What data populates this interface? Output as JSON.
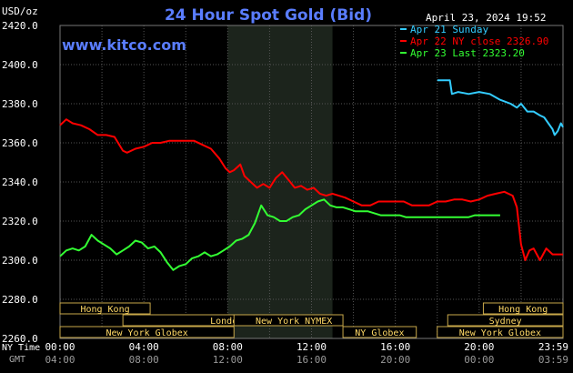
{
  "chart_data": {
    "type": "line",
    "title": "24 Hour Spot Gold (Bid)",
    "ylabel": "USD/oz",
    "watermark": "www.kitco.com",
    "timestamp": "April 23, 2024 19:52",
    "ylim": [
      2260,
      2420
    ],
    "yticks": [
      2260,
      2280,
      2300,
      2320,
      2340,
      2360,
      2380,
      2400,
      2420
    ],
    "ytick_labels": [
      "2260.0",
      "2280.0",
      "2300.0",
      "2320.0",
      "2340.0",
      "2360.0",
      "2380.0",
      "2400.0",
      "2420.0"
    ],
    "xlim": [
      0,
      24
    ],
    "xticks": [
      0,
      4,
      8,
      12,
      16,
      20,
      24
    ],
    "x_row1_label": "NY Time",
    "x_row1_ticks": [
      "00:00",
      "04:00",
      "08:00",
      "12:00",
      "16:00",
      "20:00",
      "23:59"
    ],
    "x_row2_label": "GMT",
    "x_row2_ticks": [
      "04:00",
      "08:00",
      "12:00",
      "16:00",
      "20:00",
      "00:00",
      "03:59"
    ],
    "shaded_region": [
      8,
      13
    ],
    "grid": true,
    "legend_position": "top-right",
    "series": [
      {
        "name": "Apr 21 Sunday",
        "color": "#33ccff",
        "x": [
          18,
          18.6,
          18.7,
          19.0,
          19.5,
          20.0,
          20.5,
          21.0,
          21.5,
          21.8,
          22.0,
          22.3,
          22.6,
          22.9,
          23.1,
          23.3,
          23.5,
          23.6,
          23.75,
          23.9,
          24.0
        ],
        "y": [
          2392,
          2392,
          2385,
          2386,
          2385,
          2386,
          2385,
          2382,
          2380,
          2378,
          2380,
          2376,
          2376,
          2374,
          2373,
          2370,
          2367,
          2364,
          2366,
          2370,
          2368
        ]
      },
      {
        "name": "Apr 22 NY close 2326.90",
        "color": "#ff0000",
        "x": [
          0,
          0.3,
          0.6,
          1.0,
          1.4,
          1.8,
          2.2,
          2.6,
          3.0,
          3.2,
          3.6,
          4.0,
          4.4,
          4.8,
          5.2,
          5.6,
          6.0,
          6.4,
          6.8,
          7.2,
          7.6,
          7.9,
          8.1,
          8.3,
          8.6,
          8.8,
          9.1,
          9.4,
          9.7,
          10.0,
          10.3,
          10.6,
          10.9,
          11.2,
          11.5,
          11.8,
          12.1,
          12.4,
          12.7,
          13.0,
          13.3,
          13.6,
          14.0,
          14.4,
          14.8,
          15.2,
          15.6,
          16.0,
          16.4,
          16.8,
          17.2,
          17.6,
          18.0,
          18.4,
          18.8,
          19.2,
          19.6,
          20.0,
          20.4,
          20.8,
          21.2,
          21.6,
          21.8,
          22.0,
          22.2,
          22.4,
          22.6,
          22.9,
          23.2,
          23.5,
          23.8,
          24.0
        ],
        "y": [
          2369,
          2372,
          2370,
          2369,
          2367,
          2364,
          2364,
          2363,
          2356,
          2355,
          2357,
          2358,
          2360,
          2360,
          2361,
          2361,
          2361,
          2361,
          2359,
          2357,
          2352,
          2347,
          2345,
          2346,
          2349,
          2343,
          2340,
          2337,
          2339,
          2337,
          2342,
          2345,
          2341,
          2337,
          2338,
          2336,
          2337,
          2334,
          2333,
          2334,
          2333,
          2332,
          2330,
          2328,
          2328,
          2330,
          2330,
          2330,
          2330,
          2328,
          2328,
          2328,
          2330,
          2330,
          2331,
          2331,
          2330,
          2331,
          2333,
          2334,
          2335,
          2333,
          2327,
          2308,
          2300,
          2305,
          2306,
          2300,
          2306,
          2303,
          2303,
          2303
        ]
      },
      {
        "name": "Apr 23 Last 2323.20",
        "color": "#33ff33",
        "x": [
          0,
          0.3,
          0.6,
          0.9,
          1.2,
          1.5,
          1.8,
          2.1,
          2.4,
          2.7,
          3.0,
          3.3,
          3.6,
          3.9,
          4.2,
          4.5,
          4.8,
          5.1,
          5.4,
          5.7,
          6.0,
          6.3,
          6.6,
          6.9,
          7.2,
          7.5,
          7.8,
          8.1,
          8.4,
          8.7,
          9.0,
          9.3,
          9.6,
          9.9,
          10.2,
          10.5,
          10.8,
          11.1,
          11.4,
          11.7,
          12.0,
          12.3,
          12.6,
          12.9,
          13.2,
          13.5,
          13.8,
          14.1,
          14.4,
          14.7,
          15.0,
          15.3,
          15.6,
          15.9,
          16.2,
          16.5,
          16.8,
          17.1,
          17.4,
          17.7,
          18.0,
          18.3,
          18.6,
          18.9,
          19.2,
          19.5,
          19.8,
          20.1,
          20.4,
          20.7,
          21.0
        ],
        "y": [
          2302,
          2305,
          2306,
          2305,
          2307,
          2313,
          2310,
          2308,
          2306,
          2303,
          2305,
          2307,
          2310,
          2309,
          2306,
          2307,
          2304,
          2299,
          2295,
          2297,
          2298,
          2301,
          2302,
          2304,
          2302,
          2303,
          2305,
          2307,
          2310,
          2311,
          2313,
          2319,
          2328,
          2323,
          2322,
          2320,
          2320,
          2322,
          2323,
          2326,
          2328,
          2330,
          2331,
          2328,
          2327,
          2327,
          2326,
          2325,
          2325,
          2325,
          2324,
          2323,
          2323,
          2323,
          2323,
          2322,
          2322,
          2322,
          2322,
          2322,
          2322,
          2322,
          2322,
          2322,
          2322,
          2322,
          2323,
          2323,
          2323,
          2323,
          2323
        ]
      }
    ],
    "sessions": [
      {
        "name": "Hong Kong",
        "start": 0,
        "end": 4.3
      },
      {
        "name": "London",
        "start": 3,
        "end": 12
      },
      {
        "name": "New York Globex",
        "start": 0,
        "end": 8.3
      },
      {
        "name": "New York NYMEX",
        "start": 8.3,
        "end": 13.5
      },
      {
        "name": "NY Globex",
        "start": 13.5,
        "end": 17
      },
      {
        "name": "Hong Kong",
        "start": 20.2,
        "end": 24
      },
      {
        "name": "Sydney",
        "start": 18.5,
        "end": 24
      },
      {
        "name": "New York Globex",
        "start": 18,
        "end": 24
      }
    ]
  }
}
